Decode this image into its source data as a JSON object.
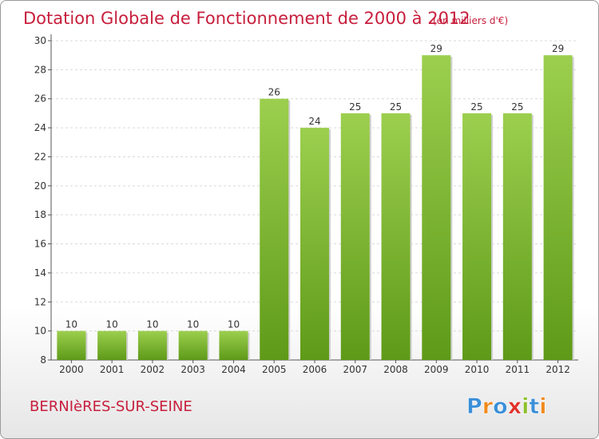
{
  "chart_data": {
    "type": "bar",
    "title": "Dotation Globale de Fonctionnement de 2000 à 2012",
    "subtitle": "(en milliers d'€)",
    "categories": [
      "2000",
      "2001",
      "2002",
      "2003",
      "2004",
      "2005",
      "2006",
      "2007",
      "2008",
      "2009",
      "2010",
      "2011",
      "2012"
    ],
    "values": [
      10,
      10,
      10,
      10,
      10,
      26,
      24,
      25,
      25,
      29,
      25,
      25,
      29
    ],
    "ylim": [
      8,
      30
    ],
    "yticks": [
      8,
      10,
      12,
      14,
      16,
      18,
      20,
      22,
      24,
      26,
      28,
      30
    ],
    "grid": true,
    "bar_color_top": "#9ccf4e",
    "bar_color_bottom": "#5e9a18"
  },
  "commune": "BERNIèRES-SUR-SEINE",
  "brand": {
    "text": "Proxiti",
    "letter_colors": [
      "#3a8fd8",
      "#f08a1c",
      "#3a8fd8",
      "#e0302a",
      "#8cbf2a",
      "#3a8fd8",
      "#f08a1c"
    ]
  }
}
